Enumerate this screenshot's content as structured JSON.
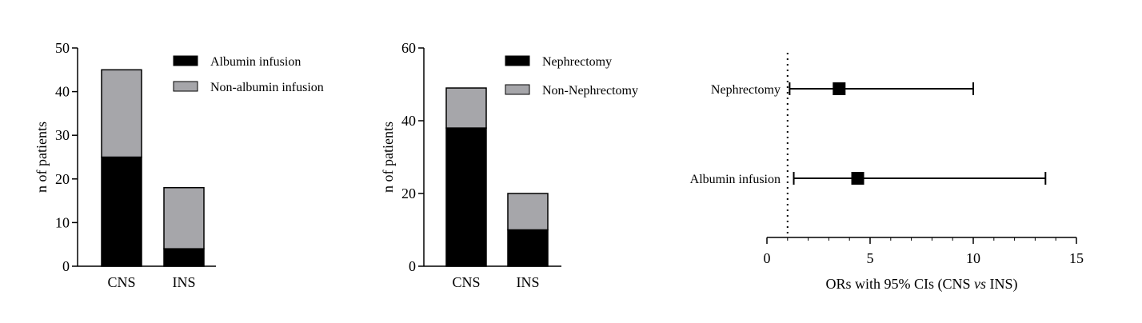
{
  "chart_data": [
    {
      "type": "bar",
      "stacked": true,
      "categories": [
        "CNS",
        "INS"
      ],
      "series": [
        {
          "name": "Albumin infusion",
          "values": [
            25,
            4
          ],
          "color": "#000000"
        },
        {
          "name": "Non-albumin infusion",
          "values": [
            20,
            14
          ],
          "color": "#a6a6aa"
        }
      ],
      "ylabel": "n of patients",
      "ylim": [
        0,
        50
      ],
      "yticks": [
        "0",
        "10",
        "20",
        "30",
        "40",
        "50"
      ],
      "grid": false,
      "legend": "top-right"
    },
    {
      "type": "bar",
      "stacked": true,
      "categories": [
        "CNS",
        "INS"
      ],
      "series": [
        {
          "name": "Nephrectomy",
          "values": [
            38,
            10
          ],
          "color": "#000000"
        },
        {
          "name": "Non-Nephrectomy",
          "values": [
            11,
            10
          ],
          "color": "#a6a6aa"
        }
      ],
      "ylabel": "n of patients",
      "ylim": [
        0,
        60
      ],
      "yticks": [
        "0",
        "20",
        "40",
        "60"
      ],
      "grid": false,
      "legend": "top-right"
    },
    {
      "type": "scatter",
      "subtype": "forest",
      "categories": [
        "Nephrectomy",
        "Albumin infusion"
      ],
      "estimates": [
        3.5,
        4.4
      ],
      "ci": [
        [
          1.1,
          10.0
        ],
        [
          1.3,
          13.5
        ]
      ],
      "reference_line": 1,
      "xlabel_parts": [
        "ORs with 95% CIs (CNS ",
        "vs",
        " INS)"
      ],
      "xlim": [
        0,
        15
      ],
      "xticks": [
        "0",
        "5",
        "10",
        "15"
      ],
      "grid": false
    }
  ]
}
